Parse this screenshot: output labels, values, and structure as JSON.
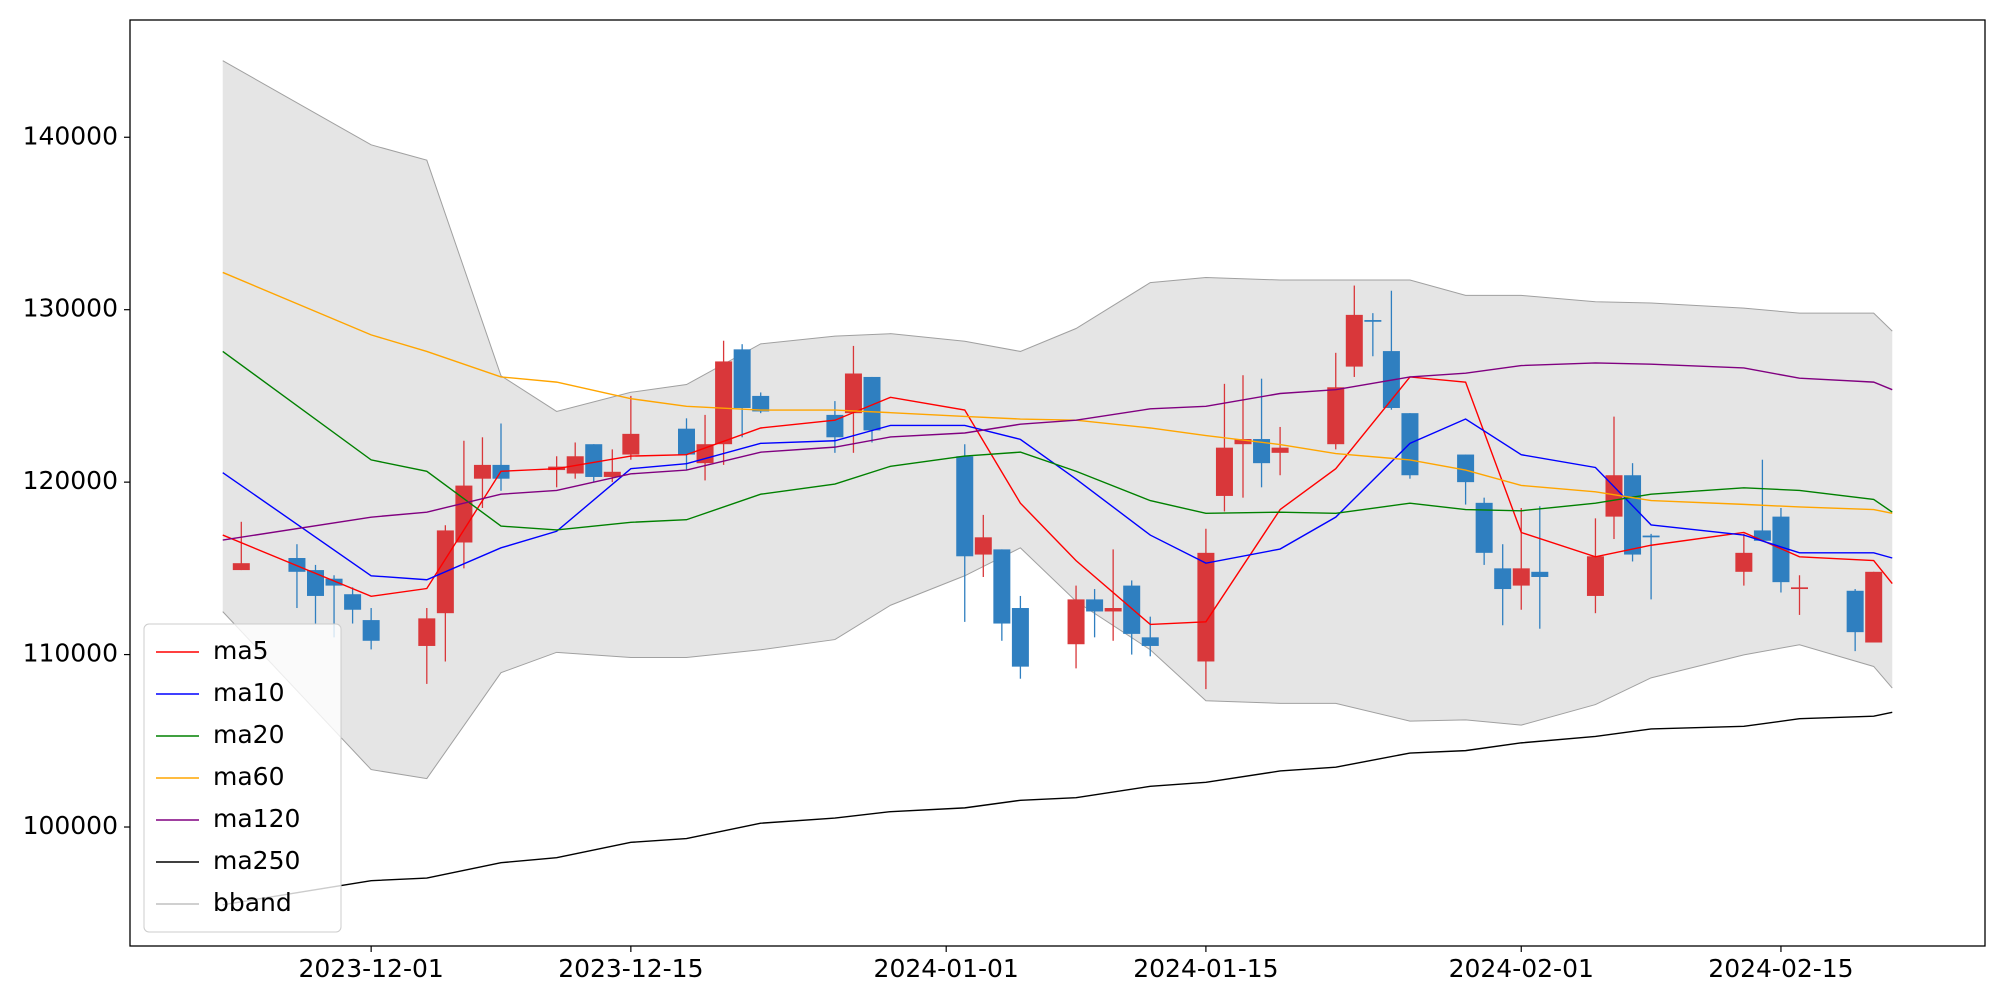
{
  "chart_data": {
    "type": "candlestick",
    "x": [
      "2023-11-24",
      "2023-11-27",
      "2023-11-28",
      "2023-11-29",
      "2023-11-30",
      "2023-12-01",
      "2023-12-04",
      "2023-12-05",
      "2023-12-06",
      "2023-12-07",
      "2023-12-08",
      "2023-12-11",
      "2023-12-12",
      "2023-12-13",
      "2023-12-14",
      "2023-12-15",
      "2023-12-18",
      "2023-12-19",
      "2023-12-20",
      "2023-12-21",
      "2023-12-22",
      "2023-12-26",
      "2023-12-27",
      "2023-12-28",
      "2024-01-02",
      "2024-01-03",
      "2024-01-04",
      "2024-01-05",
      "2024-01-08",
      "2024-01-09",
      "2024-01-10",
      "2024-01-11",
      "2024-01-12",
      "2024-01-15",
      "2024-01-16",
      "2024-01-17",
      "2024-01-18",
      "2024-01-19",
      "2024-01-22",
      "2024-01-23",
      "2024-01-24",
      "2024-01-25",
      "2024-01-26",
      "2024-01-29",
      "2024-01-30",
      "2024-01-31",
      "2024-02-01",
      "2024-02-02",
      "2024-02-05",
      "2024-02-06",
      "2024-02-07",
      "2024-02-08",
      "2024-02-13",
      "2024-02-14",
      "2024-02-15",
      "2024-02-16",
      "2024-02-19",
      "2024-02-20"
    ],
    "open": [
      114900,
      115600,
      114900,
      114400,
      113500,
      112000,
      110500,
      112400,
      116500,
      120200,
      121000,
      120700,
      120500,
      122200,
      120300,
      121600,
      123100,
      121100,
      122200,
      127700,
      125000,
      123900,
      124000,
      126100,
      121500,
      115800,
      116100,
      112700,
      110600,
      113200,
      112500,
      114000,
      111000,
      109600,
      119200,
      122200,
      122500,
      121700,
      122200,
      126700,
      129400,
      127600,
      124000,
      121600,
      118800,
      115000,
      114000,
      114800,
      113400,
      118000,
      120400,
      116900,
      114800,
      117200,
      118000,
      113800,
      113700,
      110700
    ],
    "high": [
      117700,
      116400,
      115200,
      114600,
      113900,
      112700,
      112700,
      117500,
      122400,
      122600,
      123400,
      121500,
      122300,
      122200,
      121900,
      125000,
      123700,
      123900,
      128200,
      128000,
      125200,
      124700,
      127900,
      126100,
      122200,
      118100,
      116100,
      113400,
      114000,
      113800,
      116100,
      114300,
      112200,
      117300,
      125700,
      126200,
      126000,
      123200,
      127500,
      131400,
      129800,
      131100,
      124000,
      121600,
      119100,
      116400,
      118500,
      118600,
      117900,
      123800,
      121100,
      117000,
      117000,
      121300,
      118500,
      114600,
      113800,
      114800
    ],
    "low": [
      114900,
      112700,
      111800,
      111000,
      111800,
      110300,
      108300,
      109600,
      115000,
      118500,
      119500,
      119700,
      120200,
      120000,
      120000,
      121300,
      120700,
      120100,
      121000,
      122600,
      124000,
      121700,
      121700,
      122300,
      111900,
      114500,
      110800,
      108600,
      109200,
      111000,
      110800,
      110000,
      109900,
      108000,
      118300,
      119100,
      119700,
      120400,
      121900,
      126100,
      127300,
      124200,
      120200,
      118700,
      115200,
      111700,
      112600,
      111500,
      112400,
      116700,
      115400,
      113200,
      114000,
      116600,
      113600,
      112300,
      110200,
      110700
    ],
    "close": [
      115300,
      114800,
      113400,
      114000,
      112600,
      110800,
      112100,
      117200,
      119800,
      121000,
      120200,
      120900,
      121500,
      120300,
      120600,
      122800,
      121600,
      122200,
      127000,
      124300,
      124100,
      122600,
      126300,
      123000,
      115700,
      116800,
      111800,
      109300,
      113200,
      112500,
      112700,
      111200,
      110500,
      115900,
      122000,
      122500,
      121100,
      122000,
      125500,
      129700,
      129300,
      124300,
      120400,
      120000,
      115900,
      113800,
      115000,
      114500,
      115700,
      120400,
      115800,
      116800,
      115900,
      116600,
      114200,
      113900,
      111300,
      114800
    ],
    "up_color": "#d9373a",
    "down_color": "#2f7fc0",
    "series": [
      {
        "name": "ma5",
        "color": "#ff0000",
        "x": [
          "2023-11-23",
          "2023-12-01",
          "2023-12-04",
          "2023-12-08",
          "2023-12-11",
          "2023-12-15",
          "2023-12-18",
          "2023-12-22",
          "2023-12-26",
          "2023-12-29",
          "2024-01-02",
          "2024-01-05",
          "2024-01-08",
          "2024-01-12",
          "2024-01-15",
          "2024-01-19",
          "2024-01-22",
          "2024-01-26",
          "2024-01-29",
          "2024-02-01",
          "2024-02-05",
          "2024-02-08",
          "2024-02-13",
          "2024-02-16",
          "2024-02-20",
          "2024-02-21"
        ],
        "values": [
          116930,
          113380,
          113830,
          120630,
          120780,
          121510,
          121590,
          123140,
          123590,
          124920,
          124180,
          118780,
          115450,
          111750,
          111900,
          118410,
          120780,
          126100,
          125800,
          117080,
          115670,
          116340,
          117080,
          115670,
          115450,
          114120
        ]
      },
      {
        "name": "ma10",
        "color": "#0000ff",
        "x": [
          "2023-11-23",
          "2023-12-01",
          "2023-12-04",
          "2023-12-08",
          "2023-12-11",
          "2023-12-15",
          "2023-12-18",
          "2023-12-22",
          "2023-12-26",
          "2023-12-29",
          "2024-01-02",
          "2024-01-05",
          "2024-01-08",
          "2024-01-12",
          "2024-01-15",
          "2024-01-19",
          "2024-01-22",
          "2024-01-26",
          "2024-01-29",
          "2024-02-01",
          "2024-02-05",
          "2024-02-08",
          "2024-02-13",
          "2024-02-16",
          "2024-02-20",
          "2024-02-21"
        ],
        "values": [
          120550,
          114570,
          114340,
          116190,
          117150,
          120780,
          121070,
          122250,
          122400,
          123290,
          123290,
          122480,
          120180,
          116930,
          115300,
          116120,
          117970,
          122250,
          123660,
          121590,
          120850,
          117520,
          116930,
          115900,
          115900,
          115600
        ]
      },
      {
        "name": "ma20",
        "color": "#008000",
        "x": [
          "2023-11-23",
          "2023-12-01",
          "2023-12-04",
          "2023-12-08",
          "2023-12-11",
          "2023-12-15",
          "2023-12-18",
          "2023-12-22",
          "2023-12-26",
          "2023-12-29",
          "2024-01-02",
          "2024-01-05",
          "2024-01-08",
          "2024-01-12",
          "2024-01-15",
          "2024-01-19",
          "2024-01-22",
          "2024-01-26",
          "2024-01-29",
          "2024-02-01",
          "2024-02-05",
          "2024-02-08",
          "2024-02-13",
          "2024-02-16",
          "2024-02-20",
          "2024-02-21"
        ],
        "values": [
          127580,
          121290,
          120630,
          117450,
          117230,
          117670,
          117820,
          119300,
          119890,
          120920,
          121510,
          121740,
          120630,
          118930,
          118190,
          118260,
          118190,
          118780,
          118410,
          118340,
          118780,
          119300,
          119670,
          119520,
          119000,
          118260
        ]
      },
      {
        "name": "ma60",
        "color": "#ffa500",
        "x": [
          "2023-11-23",
          "2023-12-01",
          "2023-12-04",
          "2023-12-08",
          "2023-12-11",
          "2023-12-15",
          "2023-12-18",
          "2023-12-22",
          "2023-12-26",
          "2023-12-29",
          "2024-01-02",
          "2024-01-05",
          "2024-01-08",
          "2024-01-12",
          "2024-01-15",
          "2024-01-19",
          "2024-01-22",
          "2024-01-26",
          "2024-01-29",
          "2024-02-01",
          "2024-02-05",
          "2024-02-08",
          "2024-02-13",
          "2024-02-16",
          "2024-02-20",
          "2024-02-21"
        ],
        "values": [
          132160,
          128540,
          127580,
          126100,
          125800,
          124840,
          124400,
          124180,
          124180,
          124030,
          123810,
          123660,
          123590,
          123140,
          122700,
          122180,
          121660,
          121290,
          120700,
          119810,
          119440,
          118930,
          118710,
          118560,
          118410,
          118190
        ]
      },
      {
        "name": "ma120",
        "color": "#800080",
        "x": [
          "2023-11-23",
          "2023-12-01",
          "2023-12-04",
          "2023-12-08",
          "2023-12-11",
          "2023-12-15",
          "2023-12-18",
          "2023-12-22",
          "2023-12-26",
          "2023-12-29",
          "2024-01-02",
          "2024-01-05",
          "2024-01-08",
          "2024-01-12",
          "2024-01-15",
          "2024-01-19",
          "2024-01-22",
          "2024-01-26",
          "2024-01-29",
          "2024-02-01",
          "2024-02-05",
          "2024-02-08",
          "2024-02-13",
          "2024-02-16",
          "2024-02-20",
          "2024-02-21"
        ],
        "values": [
          116640,
          117970,
          118260,
          119300,
          119520,
          120480,
          120700,
          121740,
          122030,
          122620,
          122850,
          123360,
          123590,
          124250,
          124400,
          125140,
          125360,
          126100,
          126320,
          126760,
          126910,
          126840,
          126620,
          126030,
          125800,
          125360
        ]
      },
      {
        "name": "ma250",
        "color": "#000000",
        "x": [
          "2023-11-23",
          "2023-12-01",
          "2023-12-04",
          "2023-12-08",
          "2023-12-11",
          "2023-12-15",
          "2023-12-18",
          "2023-12-22",
          "2023-12-26",
          "2023-12-29",
          "2024-01-02",
          "2024-01-05",
          "2024-01-08",
          "2024-01-12",
          "2024-01-15",
          "2024-01-19",
          "2024-01-22",
          "2024-01-26",
          "2024-01-29",
          "2024-02-01",
          "2024-02-05",
          "2024-02-08",
          "2024-02-13",
          "2024-02-16",
          "2024-02-20",
          "2024-02-21"
        ],
        "values": [
          95490,
          96890,
          97040,
          97930,
          98220,
          99110,
          99330,
          100220,
          100520,
          100890,
          101110,
          101550,
          101700,
          102360,
          102590,
          103250,
          103470,
          104290,
          104430,
          104880,
          105250,
          105690,
          105840,
          106280,
          106430,
          106650
        ]
      }
    ],
    "band": {
      "name": "bband",
      "color": "#a0a0a0",
      "fill": "#e5e5e5",
      "x": [
        "2023-11-23",
        "2023-12-01",
        "2023-12-04",
        "2023-12-08",
        "2023-12-11",
        "2023-12-15",
        "2023-12-18",
        "2023-12-22",
        "2023-12-26",
        "2023-12-29",
        "2024-01-02",
        "2024-01-05",
        "2024-01-08",
        "2024-01-12",
        "2024-01-15",
        "2024-01-19",
        "2024-01-22",
        "2024-01-26",
        "2024-01-29",
        "2024-02-01",
        "2024-02-05",
        "2024-02-08",
        "2024-02-13",
        "2024-02-16",
        "2024-02-20",
        "2024-02-21"
      ],
      "upper": [
        144440,
        139560,
        138670,
        126170,
        124100,
        125210,
        125660,
        128020,
        128470,
        128610,
        128170,
        127580,
        128910,
        131570,
        131870,
        131720,
        131720,
        131720,
        130830,
        130830,
        130460,
        130390,
        130090,
        129800,
        129800,
        128760
      ],
      "lower": [
        112490,
        103330,
        102810,
        108950,
        110130,
        109830,
        109830,
        110280,
        110870,
        112860,
        114570,
        116190,
        113090,
        110280,
        107320,
        107170,
        107170,
        106140,
        106210,
        105910,
        107100,
        108650,
        109980,
        110570,
        109310,
        108060
      ]
    },
    "xlim": [
      "2023-11-18",
      "2024-02-26"
    ],
    "xticks": [
      "2023-12-01",
      "2023-12-15",
      "2024-01-01",
      "2024-01-15",
      "2024-02-01",
      "2024-02-15"
    ],
    "ylim": [
      93100,
      146800
    ],
    "yticks": [
      100000,
      110000,
      120000,
      130000,
      140000
    ],
    "legend": "lower left"
  }
}
